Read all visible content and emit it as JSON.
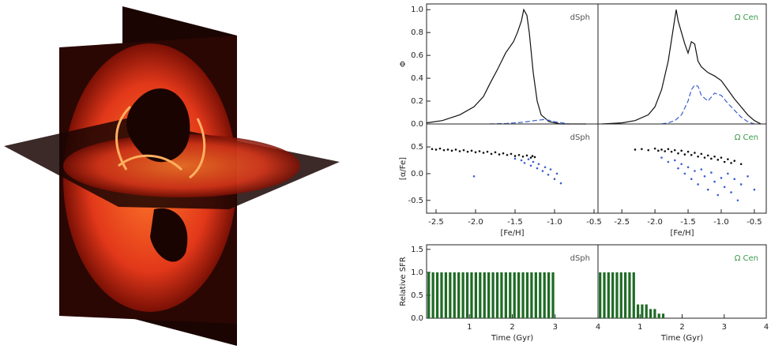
{
  "chart_data": [
    {
      "type": "line",
      "ylabel": "Φ",
      "label": "dSph",
      "label_color": "#555555",
      "xlim": [
        -2.62,
        -0.45
      ],
      "ylim": [
        0,
        1.05
      ],
      "yticks": [
        {
          "value": 0,
          "label": "0.0"
        },
        0.2,
        0.4,
        0.6,
        0.8,
        {
          "value": 1,
          "label": "1.0"
        }
      ],
      "series": [
        {
          "color": "#111111",
          "dashed": false,
          "x": [
            -2.62,
            -2.42,
            -2.2,
            -2.02,
            -1.9,
            -1.82,
            -1.72,
            -1.62,
            -1.52,
            -1.47,
            -1.42,
            -1.39,
            -1.35,
            -1.32,
            -1.27,
            -1.22,
            -1.17,
            -1.07,
            -0.92,
            -0.6
          ],
          "y": [
            0.01,
            0.03,
            0.08,
            0.15,
            0.24,
            0.35,
            0.48,
            0.62,
            0.72,
            0.8,
            0.9,
            1.0,
            0.95,
            0.8,
            0.45,
            0.2,
            0.08,
            0.02,
            0.0,
            0.0
          ]
        },
        {
          "color": "#3a5fcd",
          "dashed": true,
          "x": [
            -1.82,
            -1.6,
            -1.4,
            -1.25,
            -1.12,
            -1.0,
            -0.82
          ],
          "y": [
            0.0,
            0.005,
            0.015,
            0.03,
            0.04,
            0.02,
            0.0
          ]
        }
      ]
    },
    {
      "type": "line",
      "label": "Ω Cen",
      "label_color": "#3a9a4a",
      "xlim": [
        -2.86,
        -0.32
      ],
      "ylim": [
        0,
        1.05
      ],
      "series": [
        {
          "color": "#111111",
          "dashed": false,
          "x": [
            -2.8,
            -2.5,
            -2.3,
            -2.1,
            -2.0,
            -1.9,
            -1.8,
            -1.72,
            -1.68,
            -1.65,
            -1.6,
            -1.55,
            -1.5,
            -1.45,
            -1.4,
            -1.35,
            -1.3,
            -1.2,
            -1.1,
            -1.0,
            -0.9,
            -0.8,
            -0.7,
            -0.6,
            -0.5,
            -0.4
          ],
          "y": [
            0.0,
            0.01,
            0.03,
            0.08,
            0.15,
            0.3,
            0.55,
            0.85,
            1.0,
            0.9,
            0.8,
            0.7,
            0.62,
            0.72,
            0.7,
            0.55,
            0.5,
            0.45,
            0.42,
            0.38,
            0.3,
            0.22,
            0.15,
            0.08,
            0.03,
            0.0
          ]
        },
        {
          "color": "#3a5fcd",
          "dashed": true,
          "x": [
            -1.9,
            -1.8,
            -1.7,
            -1.6,
            -1.5,
            -1.45,
            -1.4,
            -1.35,
            -1.3,
            -1.2,
            -1.1,
            -1.0,
            -0.9,
            -0.8,
            -0.7,
            -0.6,
            -0.5
          ],
          "y": [
            0.0,
            0.01,
            0.03,
            0.08,
            0.2,
            0.3,
            0.34,
            0.33,
            0.25,
            0.2,
            0.27,
            0.25,
            0.18,
            0.12,
            0.06,
            0.02,
            0.0
          ]
        }
      ]
    },
    {
      "type": "scatter",
      "ylabel": "[α/Fe]",
      "xlabel": "[Fe/H]",
      "label": "dSph",
      "label_color": "#555555",
      "xlim": [
        -2.62,
        -0.45
      ],
      "ylim": [
        -0.74,
        0.93
      ],
      "xticks": [
        -2.5,
        {
          "value": -2,
          "label": "-2.0"
        },
        -1.5,
        {
          "value": -1,
          "label": "-1.0"
        },
        -0.5
      ],
      "yticks": [
        0.5,
        {
          "value": 0,
          "label": "0.0"
        },
        -0.5
      ],
      "series": [
        {
          "color": "#111111",
          "x": [
            -2.55,
            -2.5,
            -2.45,
            -2.4,
            -2.35,
            -2.3,
            -2.25,
            -2.2,
            -2.15,
            -2.1,
            -2.05,
            -2.0,
            -1.95,
            -1.9,
            -1.85,
            -1.8,
            -1.75,
            -1.7,
            -1.65,
            -1.6,
            -1.55,
            -1.5,
            -1.45,
            -1.4,
            -1.35,
            -1.3,
            -1.28,
            -1.25
          ],
          "y": [
            0.46,
            0.45,
            0.47,
            0.44,
            0.45,
            0.43,
            0.45,
            0.42,
            0.44,
            0.41,
            0.43,
            0.4,
            0.42,
            0.39,
            0.41,
            0.37,
            0.4,
            0.36,
            0.38,
            0.35,
            0.37,
            0.33,
            0.35,
            0.32,
            0.34,
            0.3,
            0.33,
            0.31
          ]
        },
        {
          "color": "#3a5fcd",
          "x": [
            -1.5,
            -1.42,
            -1.38,
            -1.33,
            -1.3,
            -1.27,
            -1.22,
            -1.2,
            -1.15,
            -1.12,
            -1.08,
            -1.05,
            -1.0,
            -0.97,
            -0.92,
            -2.02
          ],
          "y": [
            0.28,
            0.25,
            0.2,
            0.27,
            0.15,
            0.22,
            0.1,
            0.18,
            0.05,
            0.12,
            -0.02,
            0.08,
            -0.1,
            0.0,
            -0.18,
            -0.05
          ]
        }
      ]
    },
    {
      "type": "scatter",
      "xlabel": "[Fe/H]",
      "label": "Ω Cen",
      "label_color": "#3a9a4a",
      "xlim": [
        -2.86,
        -0.32
      ],
      "ylim": [
        -0.74,
        0.93
      ],
      "xticks": [
        -2.5,
        {
          "value": -2,
          "label": "-2.0"
        },
        -1.5,
        {
          "value": -1,
          "label": "-1.0"
        },
        -0.5
      ],
      "series": [
        {
          "color": "#111111",
          "x": [
            -2.3,
            -2.2,
            -2.1,
            -2.0,
            -1.95,
            -1.9,
            -1.85,
            -1.8,
            -1.75,
            -1.7,
            -1.65,
            -1.6,
            -1.55,
            -1.5,
            -1.45,
            -1.4,
            -1.35,
            -1.3,
            -1.25,
            -1.2,
            -1.15,
            -1.1,
            -1.05,
            -1.0,
            -0.95,
            -0.9,
            -0.85,
            -0.8,
            -0.7
          ],
          "y": [
            0.45,
            0.46,
            0.44,
            0.47,
            0.43,
            0.45,
            0.42,
            0.46,
            0.41,
            0.44,
            0.38,
            0.43,
            0.36,
            0.41,
            0.35,
            0.39,
            0.32,
            0.37,
            0.3,
            0.34,
            0.28,
            0.32,
            0.26,
            0.3,
            0.22,
            0.27,
            0.2,
            0.24,
            0.18
          ]
        },
        {
          "color": "#3a5fcd",
          "x": [
            -1.9,
            -1.8,
            -1.7,
            -1.65,
            -1.6,
            -1.55,
            -1.5,
            -1.45,
            -1.4,
            -1.35,
            -1.3,
            -1.25,
            -1.2,
            -1.15,
            -1.1,
            -1.05,
            -1.0,
            -0.95,
            -0.9,
            -0.85,
            -0.8,
            -0.75,
            -0.7,
            -0.6,
            -0.5
          ],
          "y": [
            0.3,
            0.22,
            0.25,
            0.1,
            0.18,
            0.0,
            0.12,
            -0.1,
            0.05,
            -0.2,
            0.08,
            -0.05,
            -0.3,
            0.02,
            -0.15,
            -0.4,
            -0.08,
            -0.25,
            0.0,
            -0.35,
            -0.1,
            -0.5,
            -0.2,
            -0.05,
            -0.3
          ]
        }
      ]
    },
    {
      "type": "histogram",
      "ylabel": "Relative SFR",
      "xlabel": "Time (Gyr)",
      "label": "dSph",
      "label_color": "#555555",
      "xlim": [
        0,
        4
      ],
      "ylim": [
        0,
        1.6
      ],
      "color": "#1f6b25",
      "xticks": [
        1,
        2,
        3,
        4
      ],
      "yticks": [
        {
          "value": 0,
          "label": "0.0"
        },
        0.5,
        {
          "value": 1,
          "label": "1.0"
        },
        1.5
      ],
      "bins": [
        0,
        0.1,
        0.2,
        0.3,
        0.4,
        0.5,
        0.6,
        0.7,
        0.8,
        0.9,
        1.0,
        1.1,
        1.2,
        1.3,
        1.4,
        1.5,
        1.6,
        1.7,
        1.8,
        1.9,
        2.0,
        2.1,
        2.2,
        2.3,
        2.4,
        2.5,
        2.6,
        2.7,
        2.8,
        2.9,
        3.0
      ],
      "values": [
        1,
        1,
        1,
        1,
        1,
        1,
        1,
        1,
        1,
        1,
        1,
        1,
        1,
        1,
        1,
        1,
        1,
        1,
        1,
        1,
        1,
        1,
        1,
        1,
        1,
        1,
        1,
        1,
        1,
        1
      ]
    },
    {
      "type": "histogram",
      "xlabel": "Time (Gyr)",
      "label": "Ω Cen",
      "label_color": "#3a9a4a",
      "xlim": [
        0,
        4
      ],
      "ylim": [
        0,
        1.6
      ],
      "color": "#1f6b25",
      "xticks": [
        1,
        2,
        3,
        4
      ],
      "bins": [
        0,
        0.1,
        0.2,
        0.3,
        0.4,
        0.5,
        0.6,
        0.7,
        0.8,
        0.9,
        1.0,
        1.1,
        1.2,
        1.3,
        1.4,
        1.5,
        1.6
      ],
      "values": [
        1,
        1,
        1,
        1,
        1,
        1,
        1,
        1,
        1,
        0.3,
        0.3,
        0.3,
        0.2,
        0.2,
        0.1,
        0.1
      ]
    }
  ]
}
